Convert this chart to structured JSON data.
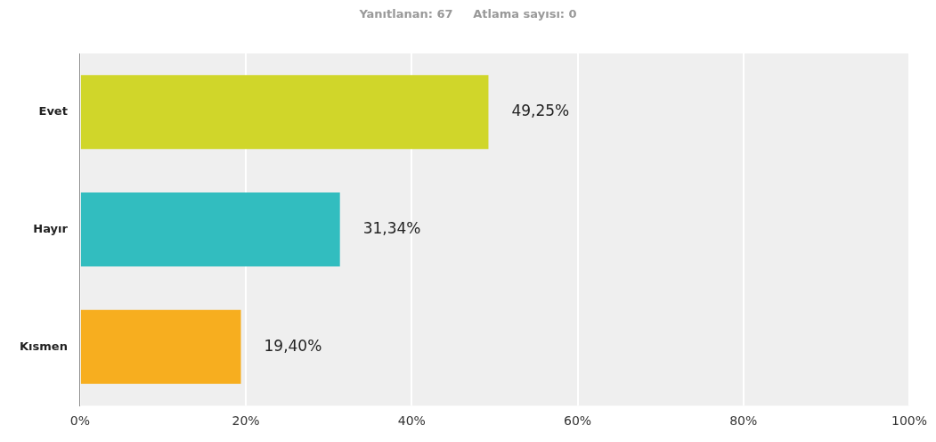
{
  "chart_data": {
    "type": "bar",
    "orientation": "horizontal",
    "title": "Yanıtlanan: 67     Atlama sayısı: 0",
    "categories": [
      "Evet",
      "Hayır",
      "Kısmen"
    ],
    "values": [
      49.25,
      31.34,
      19.4
    ],
    "colors": [
      "#d0d62a",
      "#32bdbf",
      "#f7ae1f"
    ],
    "value_labels": [
      "49,25%",
      "31,34%",
      "19,40%"
    ],
    "xlim": [
      0,
      100
    ],
    "xticks": [
      {
        "value": 0,
        "label": "0%"
      },
      {
        "value": 20,
        "label": "20%"
      },
      {
        "value": 40,
        "label": "40%"
      },
      {
        "value": 60,
        "label": "60%"
      },
      {
        "value": 80,
        "label": "80%"
      },
      {
        "value": 100,
        "label": "100%"
      }
    ],
    "grid": "x",
    "legend": false
  }
}
